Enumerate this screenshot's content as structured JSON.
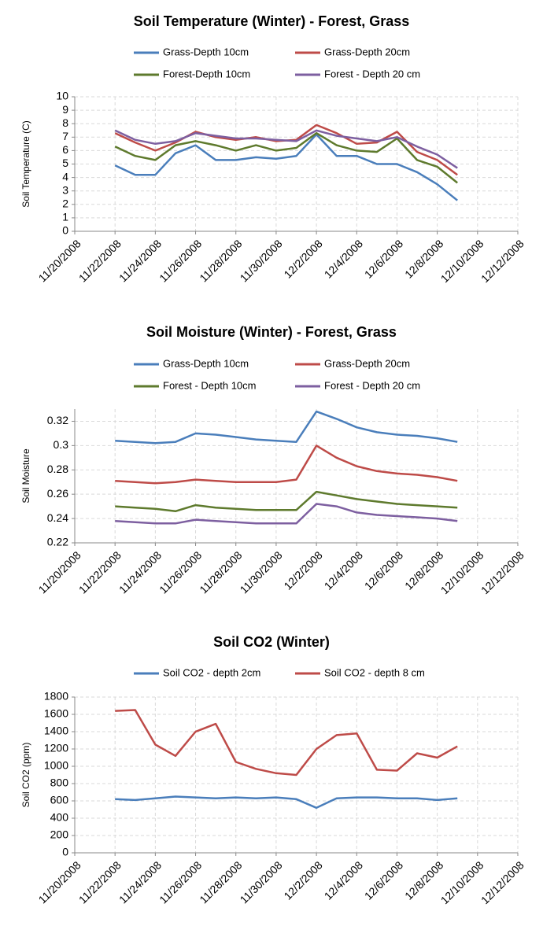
{
  "chart_data": [
    {
      "type": "line",
      "title": "Soil Temperature (Winter) - Forest, Grass",
      "y_label": "Soil Temperature (C)",
      "x": [
        "2008-11-22",
        "2008-11-23",
        "2008-11-24",
        "2008-11-25",
        "2008-11-26",
        "2008-11-27",
        "2008-11-28",
        "2008-11-29",
        "2008-11-30",
        "2008-12-01",
        "2008-12-02",
        "2008-12-03",
        "2008-12-04",
        "2008-12-05",
        "2008-12-06",
        "2008-12-07",
        "2008-12-08",
        "2008-12-09"
      ],
      "series": [
        {
          "name": "Grass-Depth 10cm",
          "color": "#4a7ebb",
          "values": [
            4.9,
            4.2,
            4.2,
            5.8,
            6.4,
            5.3,
            5.3,
            5.5,
            5.4,
            5.6,
            7.2,
            5.6,
            5.6,
            5.0,
            5.0,
            4.4,
            3.5,
            2.3
          ]
        },
        {
          "name": "Grass-Depth 20cm",
          "color": "#be4b48",
          "values": [
            7.3,
            6.6,
            6.0,
            6.6,
            7.4,
            7.0,
            6.8,
            7.0,
            6.7,
            6.8,
            7.9,
            7.3,
            6.5,
            6.6,
            7.4,
            5.9,
            5.3,
            4.2
          ]
        },
        {
          "name": "Forest-Depth 10cm",
          "color": "#5e7a2d",
          "values": [
            6.3,
            5.6,
            5.3,
            6.4,
            6.7,
            6.4,
            6.0,
            6.4,
            6.0,
            6.2,
            7.3,
            6.4,
            6.0,
            5.9,
            6.9,
            5.3,
            4.8,
            3.6
          ]
        },
        {
          "name": "Forest - Depth 20 cm",
          "color": "#7d5fa0",
          "values": [
            7.5,
            6.8,
            6.5,
            6.7,
            7.3,
            7.1,
            6.9,
            6.9,
            6.8,
            6.7,
            7.5,
            7.1,
            6.9,
            6.7,
            7.0,
            6.3,
            5.7,
            4.7
          ]
        }
      ],
      "xlim": [
        "2008-11-20",
        "2008-12-12"
      ],
      "xticks": [
        {
          "value": "2008-11-20",
          "label": "11/20/2008"
        },
        {
          "value": "2008-11-22",
          "label": "11/22/2008"
        },
        {
          "value": "2008-11-24",
          "label": "11/24/2008"
        },
        {
          "value": "2008-11-26",
          "label": "11/26/2008"
        },
        {
          "value": "2008-11-28",
          "label": "11/28/2008"
        },
        {
          "value": "2008-11-30",
          "label": "11/30/2008"
        },
        {
          "value": "2008-12-02",
          "label": "12/2/2008"
        },
        {
          "value": "2008-12-04",
          "label": "12/4/2008"
        },
        {
          "value": "2008-12-06",
          "label": "12/6/2008"
        },
        {
          "value": "2008-12-08",
          "label": "12/8/2008"
        },
        {
          "value": "2008-12-10",
          "label": "12/10/2008"
        },
        {
          "value": "2008-12-12",
          "label": "12/12/2008"
        }
      ],
      "ylim": [
        0,
        10
      ],
      "yticks": [
        0,
        1,
        2,
        3,
        4,
        5,
        6,
        7,
        8,
        9,
        10
      ],
      "grid": true
    },
    {
      "type": "line",
      "title": "Soil Moisture (Winter) - Forest, Grass",
      "y_label": "Soil Moisture",
      "x": [
        "2008-11-22",
        "2008-11-23",
        "2008-11-24",
        "2008-11-25",
        "2008-11-26",
        "2008-11-27",
        "2008-11-28",
        "2008-11-29",
        "2008-11-30",
        "2008-12-01",
        "2008-12-02",
        "2008-12-03",
        "2008-12-04",
        "2008-12-05",
        "2008-12-06",
        "2008-12-07",
        "2008-12-08",
        "2008-12-09"
      ],
      "series": [
        {
          "name": "Grass-Depth 10cm",
          "color": "#4a7ebb",
          "values": [
            0.304,
            0.303,
            0.302,
            0.303,
            0.31,
            0.309,
            0.307,
            0.305,
            0.304,
            0.303,
            0.328,
            0.322,
            0.315,
            0.311,
            0.309,
            0.308,
            0.306,
            0.303
          ]
        },
        {
          "name": "Grass-Depth 20cm",
          "color": "#be4b48",
          "values": [
            0.271,
            0.27,
            0.269,
            0.27,
            0.272,
            0.271,
            0.27,
            0.27,
            0.27,
            0.272,
            0.3,
            0.29,
            0.283,
            0.279,
            0.277,
            0.276,
            0.274,
            0.271
          ]
        },
        {
          "name": "Forest - Depth 10cm",
          "color": "#5e7a2d",
          "values": [
            0.25,
            0.249,
            0.248,
            0.246,
            0.251,
            0.249,
            0.248,
            0.247,
            0.247,
            0.247,
            0.262,
            0.259,
            0.256,
            0.254,
            0.252,
            0.251,
            0.25,
            0.249
          ]
        },
        {
          "name": "Forest - Depth 20 cm",
          "color": "#7d5fa0",
          "values": [
            0.238,
            0.237,
            0.236,
            0.236,
            0.239,
            0.238,
            0.237,
            0.236,
            0.236,
            0.236,
            0.252,
            0.25,
            0.245,
            0.243,
            0.242,
            0.241,
            0.24,
            0.238
          ]
        }
      ],
      "xlim": [
        "2008-11-20",
        "2008-12-12"
      ],
      "xticks": [
        {
          "value": "2008-11-20",
          "label": "11/20/2008"
        },
        {
          "value": "2008-11-22",
          "label": "11/22/2008"
        },
        {
          "value": "2008-11-24",
          "label": "11/24/2008"
        },
        {
          "value": "2008-11-26",
          "label": "11/26/2008"
        },
        {
          "value": "2008-11-28",
          "label": "11/28/2008"
        },
        {
          "value": "2008-11-30",
          "label": "11/30/2008"
        },
        {
          "value": "2008-12-02",
          "label": "12/2/2008"
        },
        {
          "value": "2008-12-04",
          "label": "12/4/2008"
        },
        {
          "value": "2008-12-06",
          "label": "12/6/2008"
        },
        {
          "value": "2008-12-08",
          "label": "12/8/2008"
        },
        {
          "value": "2008-12-10",
          "label": "12/10/2008"
        },
        {
          "value": "2008-12-12",
          "label": "12/12/2008"
        }
      ],
      "ylim": [
        0.22,
        0.33
      ],
      "yticks": [
        0.22,
        0.24,
        0.26,
        0.28,
        0.3,
        0.32
      ],
      "grid": true
    },
    {
      "type": "line",
      "title": "Soil CO2 (Winter)",
      "y_label": "Soil CO2 (ppm)",
      "x": [
        "2008-11-22",
        "2008-11-23",
        "2008-11-24",
        "2008-11-25",
        "2008-11-26",
        "2008-11-27",
        "2008-11-28",
        "2008-11-29",
        "2008-11-30",
        "2008-12-01",
        "2008-12-02",
        "2008-12-03",
        "2008-12-04",
        "2008-12-05",
        "2008-12-06",
        "2008-12-07",
        "2008-12-08",
        "2008-12-09"
      ],
      "series": [
        {
          "name": "Soil CO2 - depth 2cm",
          "color": "#4a7ebb",
          "values": [
            620,
            610,
            630,
            650,
            640,
            630,
            640,
            630,
            640,
            620,
            520,
            630,
            640,
            640,
            630,
            630,
            610,
            630
          ]
        },
        {
          "name": "Soil CO2 - depth 8 cm",
          "color": "#be4b48",
          "values": [
            1640,
            1650,
            1250,
            1120,
            1400,
            1490,
            1050,
            970,
            920,
            900,
            1200,
            1360,
            1380,
            960,
            950,
            1150,
            1100,
            1230
          ]
        }
      ],
      "xlim": [
        "2008-11-20",
        "2008-12-12"
      ],
      "xticks": [
        {
          "value": "2008-11-20",
          "label": "11/20/2008"
        },
        {
          "value": "2008-11-22",
          "label": "11/22/2008"
        },
        {
          "value": "2008-11-24",
          "label": "11/24/2008"
        },
        {
          "value": "2008-11-26",
          "label": "11/26/2008"
        },
        {
          "value": "2008-11-28",
          "label": "11/28/2008"
        },
        {
          "value": "2008-11-30",
          "label": "11/30/2008"
        },
        {
          "value": "2008-12-02",
          "label": "12/2/2008"
        },
        {
          "value": "2008-12-04",
          "label": "12/4/2008"
        },
        {
          "value": "2008-12-06",
          "label": "12/6/2008"
        },
        {
          "value": "2008-12-08",
          "label": "12/8/2008"
        },
        {
          "value": "2008-12-10",
          "label": "12/10/2008"
        },
        {
          "value": "2008-12-12",
          "label": "12/12/2008"
        }
      ],
      "ylim": [
        0,
        1800
      ],
      "yticks": [
        0,
        200,
        400,
        600,
        800,
        1000,
        1200,
        1400,
        1600,
        1800
      ],
      "grid": true
    }
  ]
}
